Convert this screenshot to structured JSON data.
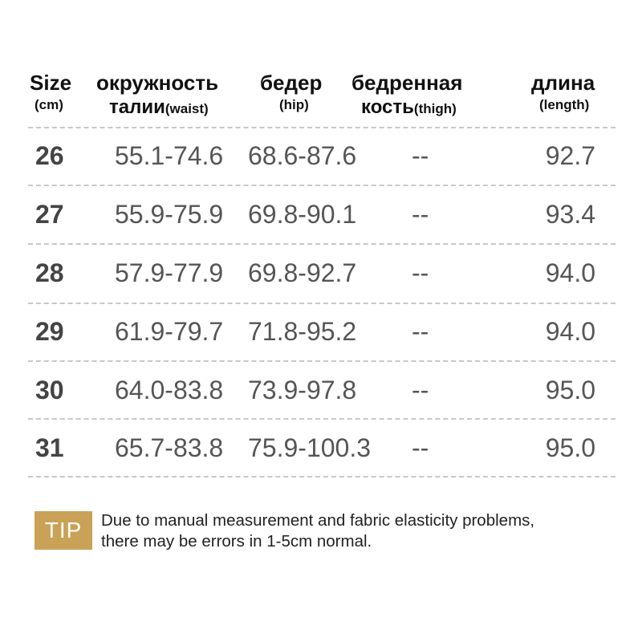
{
  "headers": {
    "size": {
      "main": "Size",
      "sub": "(cm)"
    },
    "waist": {
      "line1": "окружность",
      "line2_main": "талии",
      "line2_sub": "(waist)"
    },
    "hip": {
      "main": "бедер",
      "sub": "(hip)"
    },
    "thigh": {
      "line1": "бедренная",
      "line2_main": "кость",
      "line2_sub": "(thigh)"
    },
    "length": {
      "main": "длина",
      "sub": "(length)"
    }
  },
  "rows": [
    {
      "size": "26",
      "waist": "55.1-74.6",
      "hip": "68.6-87.6",
      "thigh": "--",
      "length": "92.7"
    },
    {
      "size": "27",
      "waist": "55.9-75.9",
      "hip": "69.8-90.1",
      "thigh": "--",
      "length": "93.4"
    },
    {
      "size": "28",
      "waist": "57.9-77.9",
      "hip": "69.8-92.7",
      "thigh": "--",
      "length": "94.0"
    },
    {
      "size": "29",
      "waist": "61.9-79.7",
      "hip": "71.8-95.2",
      "thigh": "--",
      "length": "94.0"
    },
    {
      "size": "30",
      "waist": "64.0-83.8",
      "hip": "73.9-97.8",
      "thigh": "--",
      "length": "95.0"
    },
    {
      "size": "31",
      "waist": "65.7-83.8",
      "hip": "75.9-100.3",
      "thigh": "--",
      "length": "95.0"
    }
  ],
  "tip": {
    "label": "TIP",
    "line1": "Due to manual measurement and fabric elasticity problems,",
    "line2": "there may be errors in 1-5cm normal."
  },
  "colors": {
    "tip_badge": "#c9a257",
    "divider": "#c8c8c8",
    "value_text": "#555555"
  }
}
